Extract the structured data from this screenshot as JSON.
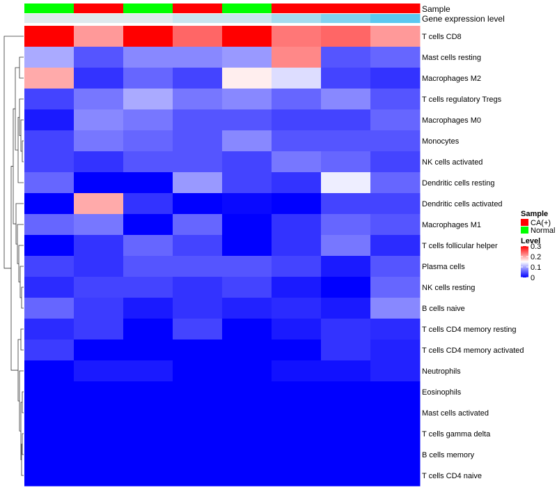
{
  "chart_data": {
    "type": "heatmap",
    "annotation_tracks": [
      {
        "name": "Sample",
        "label": "Sample"
      },
      {
        "name": "Gene expression level",
        "label": "Gene expression level"
      }
    ],
    "columns": [
      {
        "sample": "Normal",
        "expression": 0.9
      },
      {
        "sample": "CA(+)",
        "expression": 0.9
      },
      {
        "sample": "Normal",
        "expression": 0.9
      },
      {
        "sample": "CA(+)",
        "expression": 0.75
      },
      {
        "sample": "Normal",
        "expression": 0.75
      },
      {
        "sample": "CA(+)",
        "expression": 0.5
      },
      {
        "sample": "CA(+)",
        "expression": 0.25
      },
      {
        "sample": "CA(+)",
        "expression": 0.0
      }
    ],
    "rows": [
      "T cells CD8",
      "Mast cells resting",
      "Macrophages M2",
      "T cells regulatory  Tregs",
      "Macrophages M0",
      "Monocytes",
      "NK cells activated",
      "Dendritic cells resting",
      "Dendritic cells activated",
      "Macrophages M1",
      "T cells follicular helper",
      "Plasma cells",
      "NK cells resting",
      "B cells naive",
      "T cells CD4 memory resting",
      "T cells CD4 memory activated",
      "Neutrophils",
      "Eosinophils",
      "Mast cells activated",
      "T cells gamma delta",
      "B cells memory",
      "T cells CD4 naive"
    ],
    "values": [
      [
        0.3,
        0.21,
        0.3,
        0.24,
        0.3,
        0.23,
        0.24,
        0.21
      ],
      [
        0.1,
        0.05,
        0.08,
        0.08,
        0.09,
        0.22,
        0.05,
        0.06
      ],
      [
        0.2,
        0.03,
        0.06,
        0.04,
        0.16,
        0.13,
        0.04,
        0.03
      ],
      [
        0.04,
        0.07,
        0.1,
        0.07,
        0.08,
        0.06,
        0.08,
        0.05
      ],
      [
        0.015,
        0.08,
        0.07,
        0.05,
        0.05,
        0.04,
        0.04,
        0.06
      ],
      [
        0.04,
        0.07,
        0.06,
        0.05,
        0.08,
        0.05,
        0.05,
        0.05
      ],
      [
        0.04,
        0.03,
        0.05,
        0.05,
        0.04,
        0.07,
        0.06,
        0.04
      ],
      [
        0.06,
        0.0,
        0.0,
        0.09,
        0.04,
        0.03,
        0.14,
        0.06
      ],
      [
        0.0,
        0.2,
        0.03,
        0.0,
        0.005,
        0.0,
        0.04,
        0.04
      ],
      [
        0.06,
        0.07,
        0.0,
        0.06,
        0.0,
        0.03,
        0.06,
        0.05
      ],
      [
        0.0,
        0.03,
        0.06,
        0.04,
        0.0,
        0.03,
        0.07,
        0.025
      ],
      [
        0.04,
        0.03,
        0.05,
        0.05,
        0.05,
        0.04,
        0.015,
        0.05
      ],
      [
        0.025,
        0.04,
        0.04,
        0.03,
        0.04,
        0.015,
        0.0,
        0.06
      ],
      [
        0.06,
        0.035,
        0.015,
        0.03,
        0.02,
        0.025,
        0.015,
        0.08
      ],
      [
        0.025,
        0.035,
        0.0,
        0.04,
        0.0,
        0.015,
        0.03,
        0.025
      ],
      [
        0.035,
        0.0,
        0.0,
        0.0,
        0.0,
        0.0,
        0.03,
        0.02
      ],
      [
        0.0,
        0.015,
        0.015,
        0.0,
        0.0,
        0.01,
        0.01,
        0.02
      ],
      [
        0.0,
        0.0,
        0.0,
        0.0,
        0.0,
        0.0,
        0.0,
        0.0
      ],
      [
        0.0,
        0.0,
        0.0,
        0.0,
        0.0,
        0.0,
        0.0,
        0.0
      ],
      [
        0.0,
        0.0,
        0.0,
        0.0,
        0.0,
        0.0,
        0.0,
        0.0
      ],
      [
        0.0,
        0.0,
        0.0,
        0.0,
        0.0,
        0.0,
        0.0,
        0.0
      ],
      [
        0.0,
        0.0,
        0.0,
        0.0,
        0.0,
        0.0,
        0.0,
        0.0
      ]
    ],
    "value_range": [
      0,
      0.3
    ],
    "color_scale": {
      "low": "#0000FF",
      "mid": "#FFFFFF",
      "high": "#FF0000",
      "mid_value": 0.15
    },
    "annotation_colors": {
      "sample": {
        "CA(+)": "#FF0000",
        "Normal": "#00FF00"
      },
      "expression_low": "#5BC8F0",
      "expression_high": "#EEEEEE"
    },
    "row_dendrogram": true,
    "legend": {
      "sample_title": "Sample",
      "sample_items": [
        {
          "label": "CA(+)",
          "color": "#FF0000"
        },
        {
          "label": "Normal",
          "color": "#00FF00"
        }
      ],
      "level_title": "Level",
      "level_ticks": [
        {
          "label": "0.3",
          "value": 0.3
        },
        {
          "label": "0.2",
          "value": 0.2
        },
        {
          "label": "0.1",
          "value": 0.1
        },
        {
          "label": "0",
          "value": 0.0
        }
      ]
    }
  }
}
